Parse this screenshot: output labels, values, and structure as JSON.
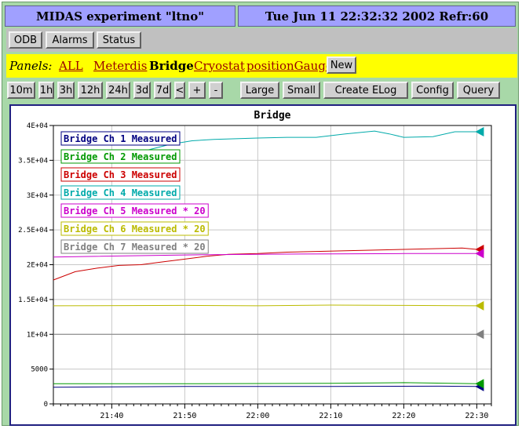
{
  "header": {
    "experiment_title": "MIDAS experiment \"ltno\"",
    "datetime_refresh": "Tue Jun 11 22:32:32 2002   Refr:60"
  },
  "toolbar": {
    "odb": "ODB",
    "alarms": "Alarms",
    "status": "Status"
  },
  "panels": {
    "label": "Panels:",
    "items": [
      "ALL",
      "Meterdis",
      "Bridge",
      "Cryostat",
      "positionGauge"
    ],
    "active": "Bridge",
    "new_button": "New"
  },
  "time_buttons": [
    "10m",
    "1h",
    "3h",
    "12h",
    "24h",
    "3d",
    "7d",
    "<",
    "+",
    "-"
  ],
  "action_buttons": [
    "Large",
    "Small",
    "Create ELog",
    "Config",
    "Query"
  ],
  "chart_data": {
    "type": "line",
    "title": "Bridge",
    "ylim": [
      0,
      40000
    ],
    "xlim": [
      "21:32",
      "22:32"
    ],
    "grid": true,
    "legend_placement": "top-left",
    "y_ticks": [
      "0",
      "5000",
      "1E+04",
      "1.5E+04",
      "2E+04",
      "2.5E+04",
      "3E+04",
      "3.5E+04",
      "4E+04"
    ],
    "x_ticks": [
      "21:40",
      "21:50",
      "22:00",
      "22:10",
      "22:20",
      "22:30"
    ],
    "series": [
      {
        "name": "Bridge Ch 1 Measured",
        "color": "#000080",
        "x": [
          "21:32",
          "21:50",
          "22:10",
          "22:25",
          "22:30"
        ],
        "y": [
          2400,
          2500,
          2500,
          2550,
          2500
        ]
      },
      {
        "name": "Bridge Ch 2 Measured",
        "color": "#009900",
        "x": [
          "21:32",
          "21:50",
          "22:10",
          "22:20",
          "22:30"
        ],
        "y": [
          2900,
          2900,
          2950,
          3050,
          2900
        ]
      },
      {
        "name": "Bridge Ch 3 Measured",
        "color": "#cc0000",
        "x": [
          "21:32",
          "21:35",
          "21:38",
          "21:41",
          "21:44",
          "21:47",
          "21:50",
          "21:53",
          "21:56",
          "22:00",
          "22:04",
          "22:08",
          "22:12",
          "22:16",
          "22:20",
          "22:24",
          "22:28",
          "22:30"
        ],
        "y": [
          17800,
          19000,
          19500,
          19900,
          20000,
          20400,
          20800,
          21200,
          21500,
          21600,
          21800,
          21900,
          22000,
          22100,
          22200,
          22300,
          22400,
          22200
        ]
      },
      {
        "name": "Bridge Ch 4 Measured",
        "color": "#00aaaa",
        "x": [
          "21:42",
          "21:45",
          "21:48",
          "21:51",
          "21:54",
          "21:57",
          "22:00",
          "22:04",
          "22:08",
          "22:12",
          "22:16",
          "22:18",
          "22:20",
          "22:24",
          "22:27",
          "22:30"
        ],
        "y": [
          35200,
          36500,
          37300,
          37800,
          38000,
          38100,
          38200,
          38300,
          38300,
          38800,
          39200,
          38800,
          38300,
          38400,
          39100,
          39100
        ]
      },
      {
        "name": "Bridge Ch 5 Measured * 20",
        "color": "#cc00cc",
        "x": [
          "21:32",
          "21:50",
          "22:00",
          "22:10",
          "22:20",
          "22:30"
        ],
        "y": [
          21100,
          21400,
          21500,
          21550,
          21600,
          21600
        ]
      },
      {
        "name": "Bridge Ch 6 Measured * 20",
        "color": "#bbbb00",
        "x": [
          "21:32",
          "21:50",
          "22:00",
          "22:10",
          "22:20",
          "22:30"
        ],
        "y": [
          14100,
          14150,
          14100,
          14200,
          14150,
          14100
        ]
      },
      {
        "name": "Bridge Ch 7 Measured * 20",
        "color": "#808080",
        "x": [
          "21:32",
          "22:30"
        ],
        "y": [
          10000,
          10000
        ]
      }
    ]
  }
}
